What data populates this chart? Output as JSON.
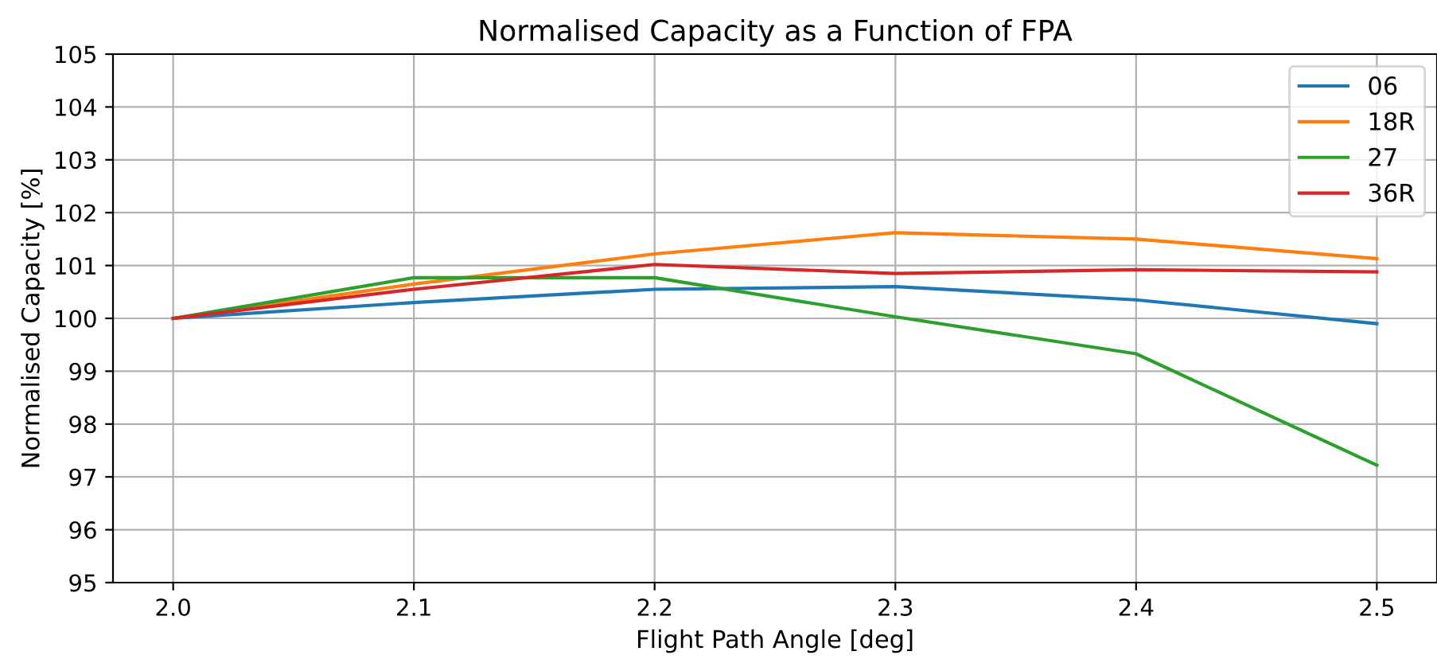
{
  "chart_data": {
    "type": "line",
    "title": "Normalised Capacity as a Function of FPA",
    "xlabel": "Flight Path Angle [deg]",
    "ylabel": "Normalised Capacity [%]",
    "x": [
      2.0,
      2.1,
      2.2,
      2.3,
      2.4,
      2.5
    ],
    "series": [
      {
        "name": "06",
        "color": "#1f77b4",
        "values": [
          100,
          100.3,
          100.55,
          100.6,
          100.35,
          99.9
        ]
      },
      {
        "name": "18R",
        "color": "#ff7f0e",
        "values": [
          100,
          100.65,
          101.22,
          101.62,
          101.5,
          101.13
        ]
      },
      {
        "name": "27",
        "color": "#2ca02c",
        "values": [
          100,
          100.77,
          100.77,
          100.03,
          99.33,
          97.22
        ]
      },
      {
        "name": "36R",
        "color": "#d62728",
        "values": [
          100,
          100.55,
          101.02,
          100.85,
          100.92,
          100.88
        ]
      }
    ],
    "xlim": [
      1.975,
      2.525
    ],
    "xticks": [
      {
        "value": 2.0,
        "label": "2.0"
      },
      2.1,
      2.2,
      2.3,
      2.4,
      {
        "value": 2.5,
        "label": "2.5"
      }
    ],
    "ylim": [
      95,
      105
    ],
    "yticks": [
      95,
      96,
      97,
      98,
      99,
      100,
      101,
      102,
      103,
      104,
      105
    ],
    "grid": true,
    "legend": "top right",
    "marker": "none",
    "line_style": "solid"
  }
}
